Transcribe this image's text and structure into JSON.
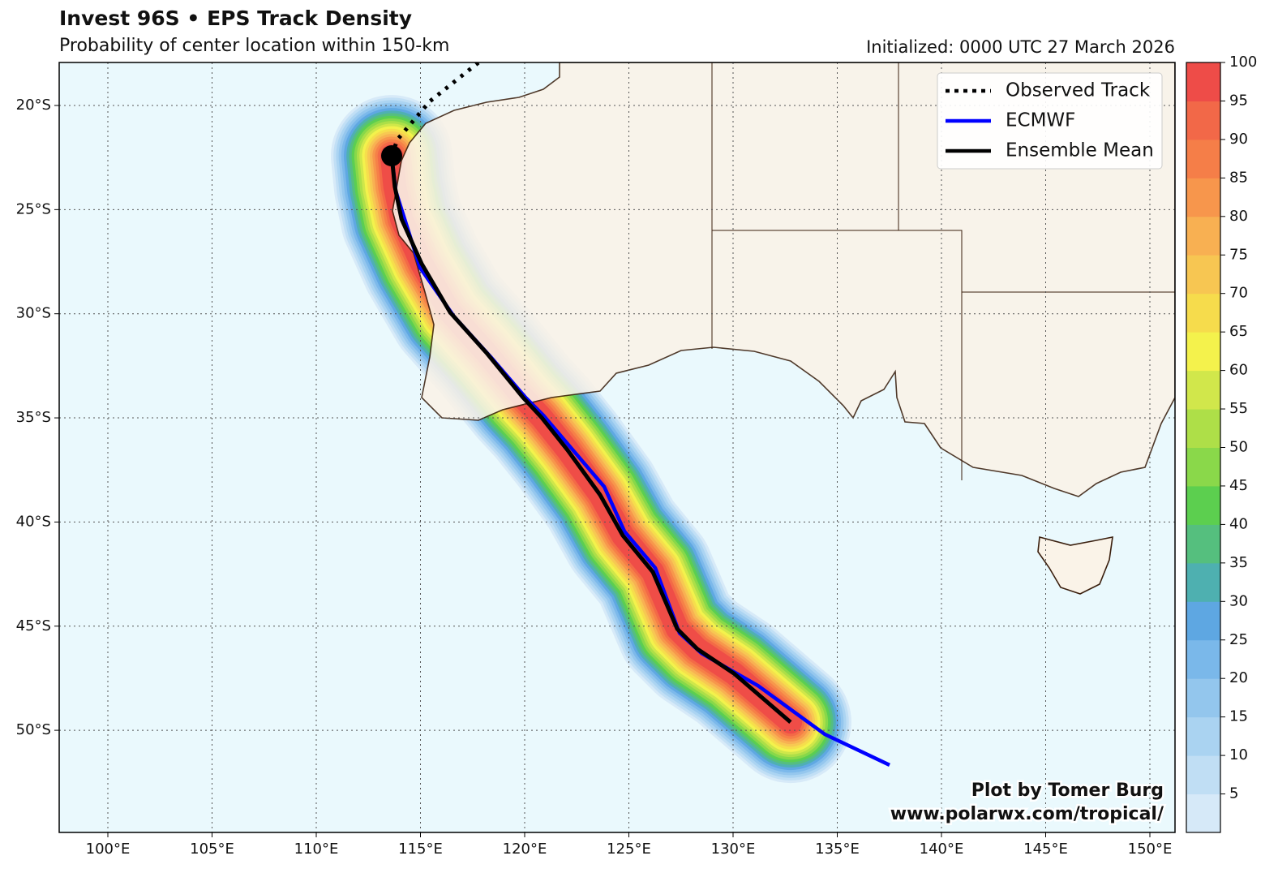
{
  "title": "Invest 96S • EPS Track Density",
  "subtitle": "Probability of center location within 150-km",
  "initialized": "Initialized: 0000 UTC 27 March 2026",
  "legend": [
    {
      "label": "Observed Track",
      "color": "#000000",
      "style": "dotted"
    },
    {
      "label": "ECMWF",
      "color": "#0000ff",
      "style": "solid"
    },
    {
      "label": "Ensemble Mean",
      "color": "#000000",
      "style": "solid"
    }
  ],
  "credit": [
    "Plot by Tomer Burg",
    "www.polarwx.com/tropical/"
  ],
  "lon_ticks": [
    {
      "value": 100,
      "label": "100°E"
    },
    {
      "value": 105,
      "label": "105°E"
    },
    {
      "value": 110,
      "label": "110°E"
    },
    {
      "value": 115,
      "label": "115°E"
    },
    {
      "value": 120,
      "label": "120°E"
    },
    {
      "value": 125,
      "label": "125°E"
    },
    {
      "value": 130,
      "label": "130°E"
    },
    {
      "value": 135,
      "label": "135°E"
    },
    {
      "value": 140,
      "label": "140°E"
    },
    {
      "value": 145,
      "label": "145°E"
    },
    {
      "value": 150,
      "label": "150°E"
    }
  ],
  "lat_ticks": [
    {
      "value": -20,
      "label": "20°S"
    },
    {
      "value": -25,
      "label": "25°S"
    },
    {
      "value": -30,
      "label": "30°S"
    },
    {
      "value": -35,
      "label": "35°S"
    },
    {
      "value": -40,
      "label": "40°S"
    },
    {
      "value": -45,
      "label": "45°S"
    },
    {
      "value": -50,
      "label": "50°S"
    }
  ],
  "tracks": [
    {
      "lon": [
        117.78,
        115.45,
        113.89,
        113.62
      ],
      "lat": [
        -17.94,
        -19.8,
        -21.64,
        -22.42
      ]
    },
    {
      "lon": [
        113.62,
        113.81,
        114.98,
        116.61,
        118.37,
        120.04,
        120.9,
        122.26,
        123.82,
        124.79,
        126.27,
        127.43,
        128.48,
        131.2,
        134.4,
        137.51
      ],
      "lat": [
        -22.42,
        -24.09,
        -27.79,
        -30.13,
        -32.07,
        -34.02,
        -34.88,
        -36.48,
        -38.31,
        -40.45,
        -42.21,
        -45.33,
        -46.3,
        -47.86,
        -50.19,
        -51.67
      ]
    },
    {
      "lon": [
        113.62,
        113.77,
        114.09,
        115.06,
        116.42,
        118.17,
        119.92,
        120.82,
        122.06,
        123.62,
        124.71,
        126.15,
        127.32,
        128.29,
        130.04,
        132.76
      ],
      "lat": [
        -22.42,
        -23.9,
        -25.45,
        -27.6,
        -29.93,
        -31.88,
        -34.02,
        -34.99,
        -36.55,
        -38.7,
        -40.65,
        -42.4,
        -45.13,
        -46.1,
        -47.27,
        -49.61
      ]
    }
  ],
  "colorbar": {
    "lim": [
      0,
      100
    ],
    "ticks": [
      5,
      10,
      15,
      20,
      25,
      30,
      35,
      40,
      45,
      50,
      55,
      60,
      65,
      70,
      75,
      80,
      85,
      90,
      95,
      100
    ],
    "colors": [
      "#d6e9f8",
      "#c0def4",
      "#aad3f1",
      "#93c6ed",
      "#7ab8ea",
      "#5ea7e2",
      "#4eb0b0",
      "#55bf7e",
      "#5ccf4f",
      "#8ad84a",
      "#aedf48",
      "#d1e74b",
      "#f4f24c",
      "#f6dc4c",
      "#f7c652",
      "#f8b052",
      "#f7964c",
      "#f57e48",
      "#f26848",
      "#ee4c48"
    ]
  }
}
